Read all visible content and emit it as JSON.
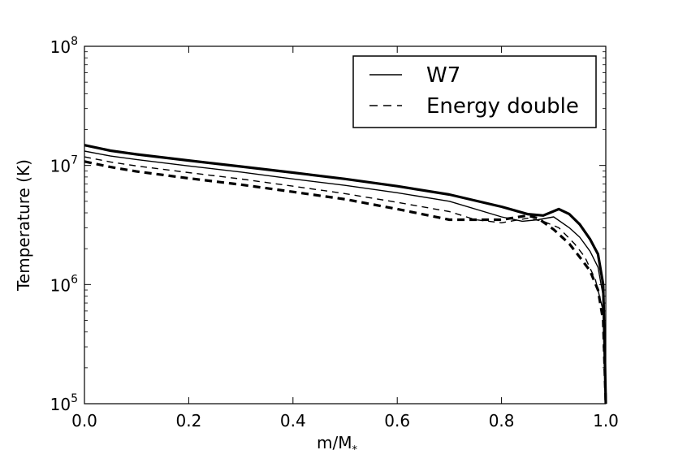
{
  "chart_data": {
    "type": "line",
    "title": "",
    "xlabel": "m/M",
    "xlabel_subscript": "*",
    "ylabel": "Temperature (K)",
    "xlim": [
      0.0,
      1.0
    ],
    "ylim": [
      100000,
      100000000
    ],
    "yscale": "log",
    "grid": false,
    "legend_position": "top-right",
    "x_ticks": [
      {
        "value": 0.0,
        "label": "0.0"
      },
      {
        "value": 0.2,
        "label": "0.2"
      },
      {
        "value": 0.4,
        "label": "0.4"
      },
      {
        "value": 0.6,
        "label": "0.6"
      },
      {
        "value": 0.8,
        "label": "0.8"
      },
      {
        "value": 1.0,
        "label": "1.0"
      }
    ],
    "y_ticks": [
      {
        "value": 100000,
        "base": "10",
        "exp": "5"
      },
      {
        "value": 1000000,
        "base": "10",
        "exp": "6"
      },
      {
        "value": 10000000,
        "base": "10",
        "exp": "7"
      },
      {
        "value": 100000000,
        "base": "10",
        "exp": "8"
      }
    ],
    "legend": [
      {
        "label": "W7",
        "style": "solid"
      },
      {
        "label": "Energy double",
        "style": "dashed"
      }
    ],
    "series": [
      {
        "name": "W7 (thick)",
        "style": "solid",
        "weight": "thick",
        "x": [
          0.0,
          0.05,
          0.1,
          0.2,
          0.3,
          0.4,
          0.5,
          0.6,
          0.7,
          0.8,
          0.85,
          0.88,
          0.91,
          0.93,
          0.95,
          0.97,
          0.985,
          0.995,
          1.0
        ],
        "y": [
          14800000,
          13300000,
          12400000,
          11000000,
          9800000,
          8700000,
          7700000,
          6700000,
          5700000,
          4500000,
          3900000,
          3800000,
          4300000,
          3900000,
          3200000,
          2400000,
          1800000,
          1000000,
          100000
        ]
      },
      {
        "name": "W7 (thin)",
        "style": "solid",
        "weight": "thin",
        "x": [
          0.0,
          0.05,
          0.1,
          0.2,
          0.3,
          0.4,
          0.5,
          0.6,
          0.7,
          0.8,
          0.84,
          0.87,
          0.9,
          0.93,
          0.95,
          0.97,
          0.985,
          0.995,
          1.0
        ],
        "y": [
          13200000,
          12000000,
          11200000,
          9900000,
          8800000,
          7700000,
          6800000,
          5900000,
          5000000,
          3700000,
          3400000,
          3500000,
          3700000,
          3000000,
          2500000,
          1900000,
          1400000,
          800000,
          100000
        ]
      },
      {
        "name": "Energy double (thick)",
        "style": "dashed",
        "weight": "thick",
        "x": [
          0.0,
          0.05,
          0.1,
          0.2,
          0.3,
          0.4,
          0.5,
          0.6,
          0.7,
          0.8,
          0.85,
          0.87,
          0.9,
          0.93,
          0.95,
          0.97,
          0.985,
          0.995,
          1.0
        ],
        "y": [
          10800000,
          9700000,
          8900000,
          7800000,
          6900000,
          6000000,
          5200000,
          4300000,
          3500000,
          3500000,
          3800000,
          3600000,
          2900000,
          2200000,
          1700000,
          1300000,
          900000,
          500000,
          100000
        ]
      },
      {
        "name": "Energy double (thin)",
        "style": "dashed",
        "weight": "thin",
        "x": [
          0.0,
          0.05,
          0.1,
          0.2,
          0.3,
          0.4,
          0.5,
          0.6,
          0.7,
          0.75,
          0.8,
          0.85,
          0.88,
          0.91,
          0.94,
          0.96,
          0.98,
          0.995,
          1.0
        ],
        "y": [
          11800000,
          10700000,
          9900000,
          8700000,
          7700000,
          6700000,
          5800000,
          4900000,
          4100000,
          3500000,
          3300000,
          3600000,
          3400000,
          3000000,
          2200000,
          1700000,
          1100000,
          600000,
          100000
        ]
      }
    ]
  }
}
